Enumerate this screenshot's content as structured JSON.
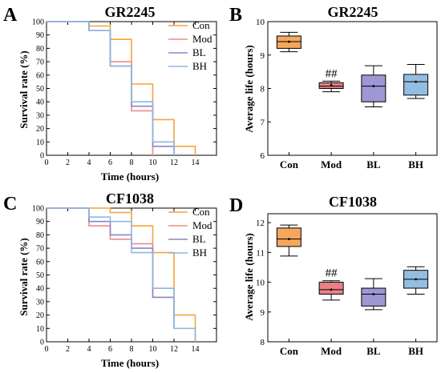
{
  "panels": [
    {
      "id": "A",
      "letter": "A",
      "chart_data": {
        "type": "line",
        "title": "GR2245",
        "xlabel": "Time (hours)",
        "ylabel": "Survival rate (%)",
        "xlim": [
          0,
          16
        ],
        "ylim": [
          0,
          100
        ],
        "xticks": [
          0,
          2,
          4,
          6,
          8,
          10,
          12,
          14
        ],
        "yticks": [
          0,
          10,
          20,
          30,
          40,
          50,
          60,
          70,
          80,
          90,
          100
        ],
        "step": true,
        "series": [
          {
            "name": "Con",
            "color": "#f7a23c",
            "x": [
              0,
              4,
              6,
              8,
              10,
              12,
              14
            ],
            "y": [
              100,
              96.7,
              86.7,
              53.3,
              26.7,
              6.7,
              0
            ]
          },
          {
            "name": "Mod",
            "color": "#f08a8a",
            "x": [
              0,
              4,
              6,
              8,
              10
            ],
            "y": [
              100,
              93.3,
              70,
              33.3,
              0
            ]
          },
          {
            "name": "BL",
            "color": "#8a84c8",
            "x": [
              0,
              4,
              6,
              8,
              10,
              12
            ],
            "y": [
              100,
              93.3,
              66.7,
              36.7,
              6.7,
              0
            ]
          },
          {
            "name": "BH",
            "color": "#8db8e0",
            "x": [
              0,
              4,
              6,
              8,
              10,
              12
            ],
            "y": [
              100,
              93.3,
              66.7,
              40,
              10,
              0
            ]
          }
        ]
      }
    },
    {
      "id": "B",
      "letter": "B",
      "chart_data": {
        "type": "box",
        "title": "GR2245",
        "ylabel": "Average life (hours)",
        "ylim": [
          6,
          10
        ],
        "yticks": [
          6,
          7,
          8,
          9,
          10
        ],
        "categories": [
          "Con",
          "Mod",
          "BL",
          "BH"
        ],
        "boxes": [
          {
            "category": "Con",
            "color": "#f5a75e",
            "min": 9.1,
            "q1": 9.2,
            "median": 9.4,
            "mean": 9.4,
            "q3": 9.57,
            "max": 9.68
          },
          {
            "category": "Mod",
            "color": "#e88287",
            "min": 7.9,
            "q1": 8.0,
            "median": 8.07,
            "mean": 8.1,
            "q3": 8.17,
            "max": 8.22,
            "annotation": "##"
          },
          {
            "category": "BL",
            "color": "#9d98d3",
            "min": 7.45,
            "q1": 7.6,
            "median": 8.07,
            "mean": 8.07,
            "q3": 8.4,
            "max": 8.68
          },
          {
            "category": "BH",
            "color": "#94bde2",
            "min": 7.7,
            "q1": 7.8,
            "median": 8.2,
            "mean": 8.2,
            "q3": 8.42,
            "max": 8.72
          }
        ]
      }
    },
    {
      "id": "C",
      "letter": "C",
      "chart_data": {
        "type": "line",
        "title": "CF1038",
        "xlabel": "Time (hours)",
        "ylabel": "Survival rate (%)",
        "xlim": [
          0,
          16
        ],
        "ylim": [
          0,
          100
        ],
        "xticks": [
          0,
          2,
          4,
          6,
          8,
          10,
          12,
          14
        ],
        "yticks": [
          0,
          10,
          20,
          30,
          40,
          50,
          60,
          70,
          80,
          90,
          100
        ],
        "step": true,
        "series": [
          {
            "name": "Con",
            "color": "#f7a23c",
            "x": [
              0,
              6,
              8,
              10,
              12,
              14
            ],
            "y": [
              100,
              96.7,
              86.7,
              66.7,
              20,
              0
            ]
          },
          {
            "name": "Mod",
            "color": "#f08a8a",
            "x": [
              0,
              4,
              6,
              8,
              10
            ],
            "y": [
              100,
              86.7,
              76.7,
              73.3,
              33.3
            ]
          },
          {
            "name": "BL",
            "color": "#8a84c8",
            "x": [
              0,
              4,
              6,
              8,
              10,
              12
            ],
            "y": [
              100,
              90,
              80,
              70,
              33.3,
              10
            ]
          },
          {
            "name": "BH",
            "color": "#8db8e0",
            "x": [
              0,
              4,
              6,
              8,
              10,
              12,
              14
            ],
            "y": [
              100,
              93.3,
              90,
              66.7,
              40,
              10,
              0
            ]
          }
        ]
      }
    },
    {
      "id": "D",
      "letter": "D",
      "chart_data": {
        "type": "box",
        "title": "CF1038",
        "ylabel": "Average life (hours)",
        "ylim": [
          8,
          12.3
        ],
        "yticks": [
          8,
          9,
          10,
          11,
          12
        ],
        "categories": [
          "Con",
          "Mod",
          "BL",
          "BH"
        ],
        "boxes": [
          {
            "category": "Con",
            "color": "#f5a75e",
            "min": 10.88,
            "q1": 11.2,
            "median": 11.45,
            "mean": 11.45,
            "q3": 11.82,
            "max": 11.92
          },
          {
            "category": "Mod",
            "color": "#e88287",
            "min": 9.4,
            "q1": 9.6,
            "median": 9.75,
            "mean": 9.75,
            "q3": 10.0,
            "max": 10.05,
            "annotation": "##"
          },
          {
            "category": "BL",
            "color": "#9d98d3",
            "min": 9.08,
            "q1": 9.2,
            "median": 9.6,
            "mean": 9.6,
            "q3": 9.8,
            "max": 10.12
          },
          {
            "category": "BH",
            "color": "#94bde2",
            "min": 9.6,
            "q1": 9.8,
            "median": 10.1,
            "mean": 10.1,
            "q3": 10.4,
            "max": 10.52
          }
        ]
      }
    }
  ]
}
